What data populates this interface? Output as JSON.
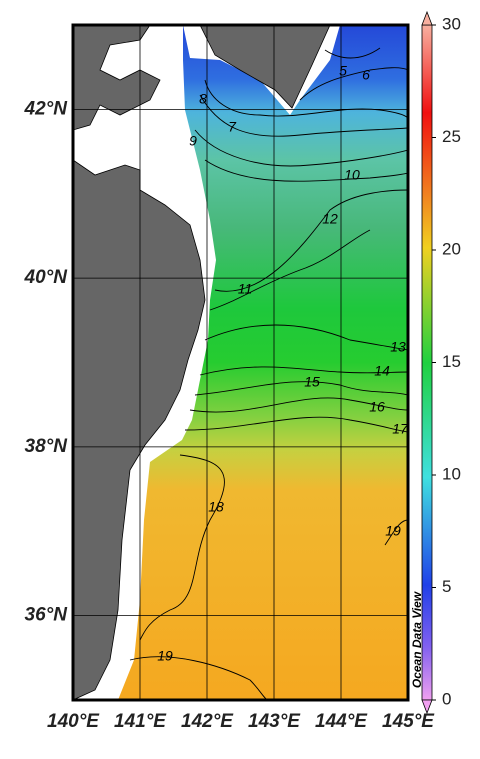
{
  "map": {
    "xlim": [
      140,
      145
    ],
    "ylim": [
      35,
      43
    ],
    "xticks": [
      {
        "value": 140,
        "label": "140°E"
      },
      {
        "value": 141,
        "label": "141°E"
      },
      {
        "value": 142,
        "label": "142°E"
      },
      {
        "value": 143,
        "label": "143°E"
      },
      {
        "value": 144,
        "label": "144°E"
      },
      {
        "value": 145,
        "label": "145°E"
      }
    ],
    "yticks": [
      {
        "value": 36,
        "label": "36°N"
      },
      {
        "value": 38,
        "label": "38°N"
      },
      {
        "value": 40,
        "label": "40°N"
      },
      {
        "value": 42,
        "label": "42°N"
      }
    ],
    "colorbar": {
      "lim": [
        0,
        30
      ],
      "ticks": [
        0,
        5,
        10,
        15,
        20,
        25,
        30
      ]
    },
    "contour_labels": [
      5,
      6,
      8,
      7,
      9,
      10,
      12,
      11,
      13,
      14,
      15,
      16,
      17,
      18,
      19,
      19
    ],
    "credit": "Ocean Data View"
  }
}
